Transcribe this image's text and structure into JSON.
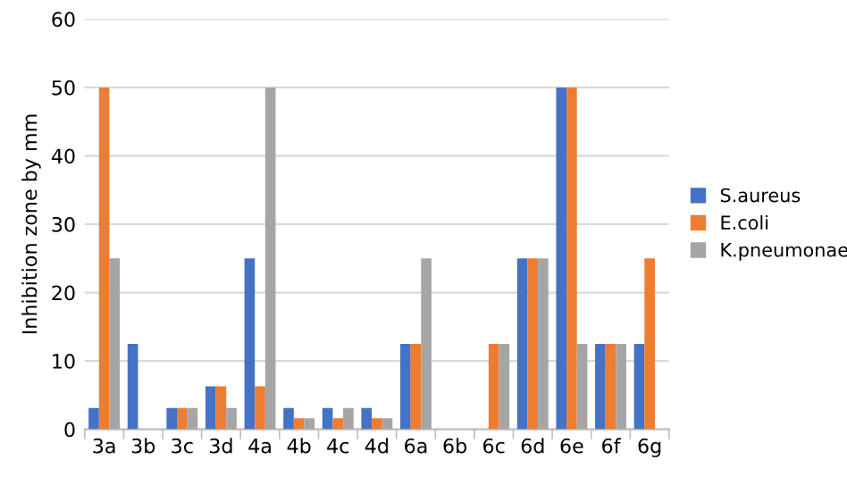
{
  "chart_data": {
    "type": "bar",
    "ylabel": "Inhibition zone by mm",
    "categories": [
      "3a",
      "3b",
      "3c",
      "3d",
      "4a",
      "4b",
      "4c",
      "4d",
      "6a",
      "6b",
      "6c",
      "6d",
      "6e",
      "6f",
      "6g"
    ],
    "series": [
      {
        "name": "S.aureus",
        "color": "#4472c4",
        "values": [
          3.1,
          12.5,
          3.1,
          6.3,
          25,
          3.1,
          3.1,
          3.1,
          12.5,
          0,
          0,
          25,
          50,
          12.5,
          12.5
        ]
      },
      {
        "name": "E.coli",
        "color": "#ed7d31",
        "values": [
          50,
          0,
          3.1,
          6.3,
          6.3,
          1.6,
          1.6,
          1.6,
          12.5,
          0,
          12.5,
          25,
          50,
          12.5,
          25
        ]
      },
      {
        "name": "K.pneumonae",
        "color": "#a5a5a5",
        "values": [
          25,
          0,
          3.1,
          3.1,
          50,
          1.6,
          3.1,
          1.6,
          25,
          0,
          12.5,
          25,
          12.5,
          12.5,
          0
        ]
      }
    ],
    "ylim": [
      0,
      60
    ],
    "yticks": [
      0,
      10,
      20,
      30,
      40,
      50,
      60
    ],
    "grid": "y",
    "legend": "right"
  }
}
